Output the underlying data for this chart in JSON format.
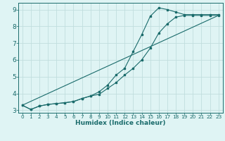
{
  "xlabel": "Humidex (Indice chaleur)",
  "bg_color": "#dff4f4",
  "grid_color": "#c0dede",
  "line_color": "#1a6b6b",
  "xlim": [
    -0.5,
    23.5
  ],
  "ylim": [
    2.85,
    9.4
  ],
  "yticks": [
    3,
    4,
    5,
    6,
    7,
    8,
    9
  ],
  "xticks": [
    0,
    1,
    2,
    3,
    4,
    5,
    6,
    7,
    8,
    9,
    10,
    11,
    12,
    13,
    14,
    15,
    16,
    17,
    18,
    19,
    20,
    21,
    22,
    23
  ],
  "series1_x": [
    0,
    1,
    2,
    3,
    4,
    5,
    6,
    7,
    8,
    9,
    10,
    11,
    12,
    13,
    14,
    15,
    16,
    17,
    18,
    19,
    20,
    21,
    22,
    23
  ],
  "series1_y": [
    3.3,
    3.05,
    3.25,
    3.35,
    3.4,
    3.45,
    3.52,
    3.7,
    3.85,
    4.1,
    4.5,
    5.1,
    5.5,
    6.5,
    7.5,
    8.6,
    9.1,
    9.0,
    8.85,
    8.7,
    8.7,
    8.7,
    8.7,
    8.7
  ],
  "series2_x": [
    0,
    1,
    2,
    3,
    4,
    5,
    6,
    7,
    8,
    9,
    10,
    11,
    12,
    13,
    14,
    15,
    16,
    17,
    18,
    19,
    20,
    21,
    22,
    23
  ],
  "series2_y": [
    3.3,
    3.05,
    3.25,
    3.35,
    3.4,
    3.45,
    3.52,
    3.7,
    3.85,
    3.95,
    4.3,
    4.65,
    5.1,
    5.5,
    6.0,
    6.7,
    7.6,
    8.15,
    8.55,
    8.65,
    8.65,
    8.65,
    8.65,
    8.65
  ],
  "series3_x": [
    0,
    23
  ],
  "series3_y": [
    3.3,
    8.65
  ],
  "xlabel_fontsize": 6.5,
  "tick_fontsize_x": 5.2,
  "tick_fontsize_y": 6.5
}
